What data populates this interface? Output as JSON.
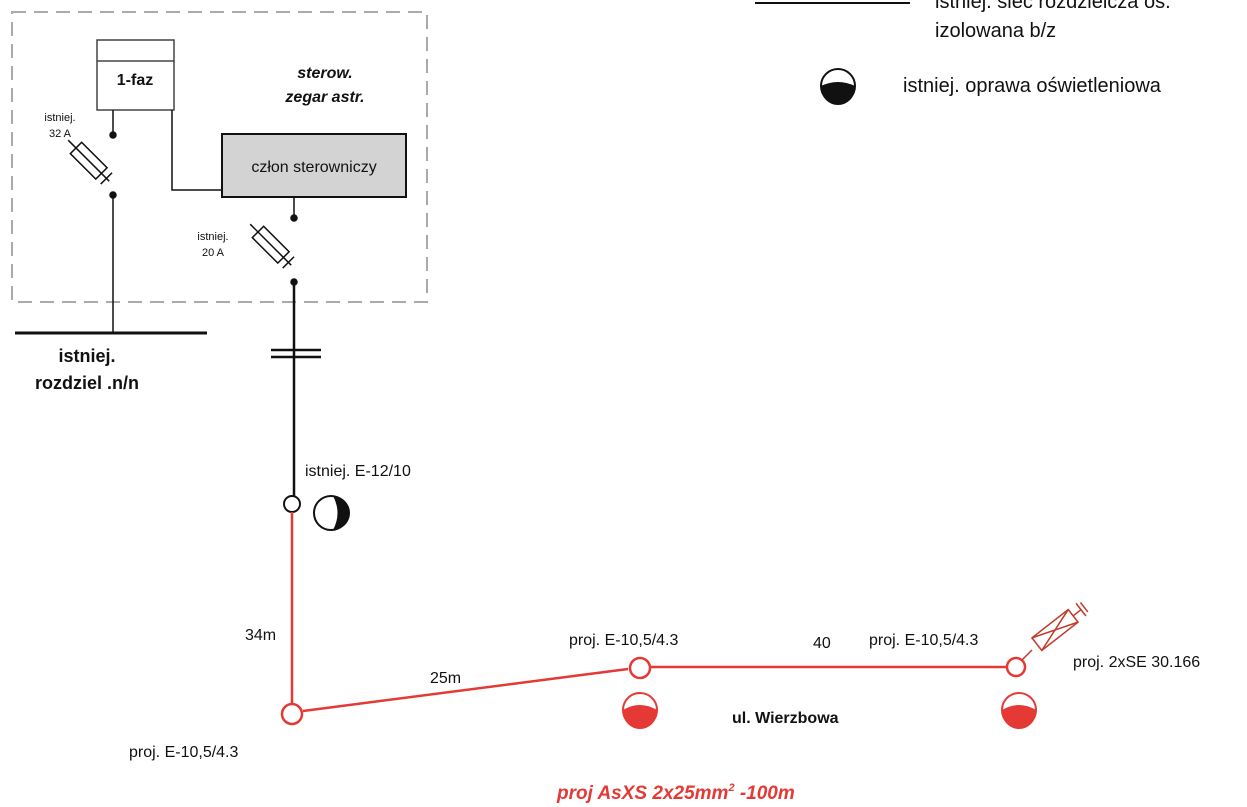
{
  "legend": {
    "line1_text": "istniej. sieć rozdzielcza oś.",
    "line2_text": "izolowana b/z",
    "lamp_text": "istniej. oprawa  oświetleniowa"
  },
  "cabinet": {
    "phase_label": "1-faz",
    "fuse1_label_1": "istniej.",
    "fuse1_label_2": "32 A",
    "control_title_1": "sterow.",
    "control_title_2": "zegar astr.",
    "control_unit": "człon sterowniczy",
    "fuse2_label_1": "istniej.",
    "fuse2_label_2": "20 A"
  },
  "distribution": {
    "label_1": "istniej.",
    "label_2": "rozdziel .n/n"
  },
  "existing_pole": {
    "label": "istniej. E-12/10"
  },
  "segments": {
    "seg1": "34m",
    "seg2": "25m",
    "seg3": "40"
  },
  "poles": {
    "p1": "proj. E-10,5/4.3",
    "p2": "proj. E-10,5/4.3",
    "p3": "proj. E-10,5/4.3"
  },
  "end_device": "proj. 2xSE 30.166",
  "street": "ul. Wierzbowa",
  "cable": {
    "text": "proj AsXS 2x25mm",
    "sup": "2",
    "tail": " -100m"
  },
  "colors": {
    "black": "#111111",
    "red": "#e53935",
    "gray_box": "#d3d3d3",
    "dashed": "#aaaaaa"
  }
}
